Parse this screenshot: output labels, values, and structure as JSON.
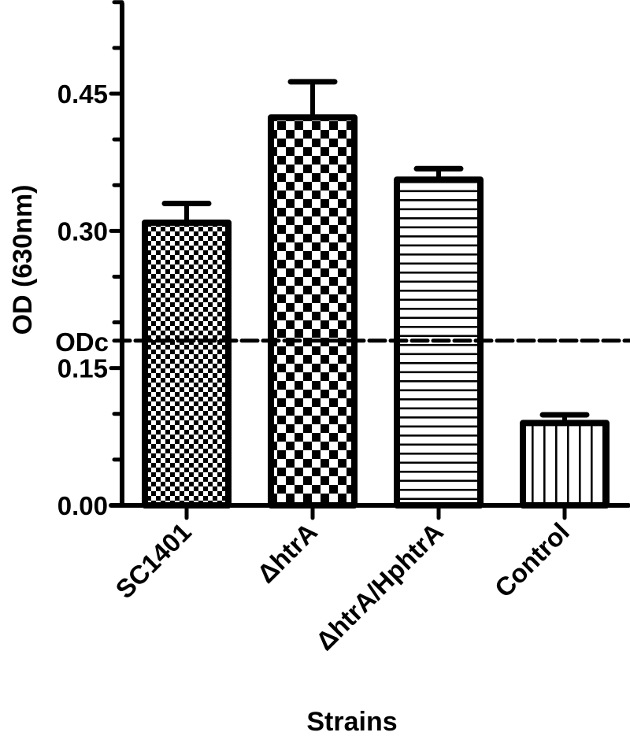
{
  "chart_data": {
    "type": "bar",
    "title": "",
    "xlabel": "Strains",
    "ylabel": "OD (630nm)",
    "categories": [
      "SC1401",
      "ΔhtrA",
      "ΔhtrA/HphtrA",
      "Control"
    ],
    "values": [
      0.309,
      0.424,
      0.356,
      0.09
    ],
    "error_upper": [
      0.33,
      0.463,
      0.368,
      0.099
    ],
    "errors": [
      0.021,
      0.039,
      0.012,
      0.009
    ],
    "patterns": [
      "fine-checker",
      "coarse-checker",
      "horizontal-lines",
      "vertical-lines"
    ],
    "ylim": [
      0,
      0.55
    ],
    "yticks": [
      0.0,
      0.15,
      0.3,
      0.45
    ],
    "ytick_labels": [
      "0.00",
      "0.15",
      "0.30",
      "0.45"
    ],
    "minor_tick_step": 0.05,
    "reference_line": {
      "label": "ODc",
      "value": 0.18,
      "style": "dashed"
    },
    "grid": false,
    "legend": "none",
    "colors": {
      "ink": "#000000",
      "background": "#ffffff"
    }
  }
}
